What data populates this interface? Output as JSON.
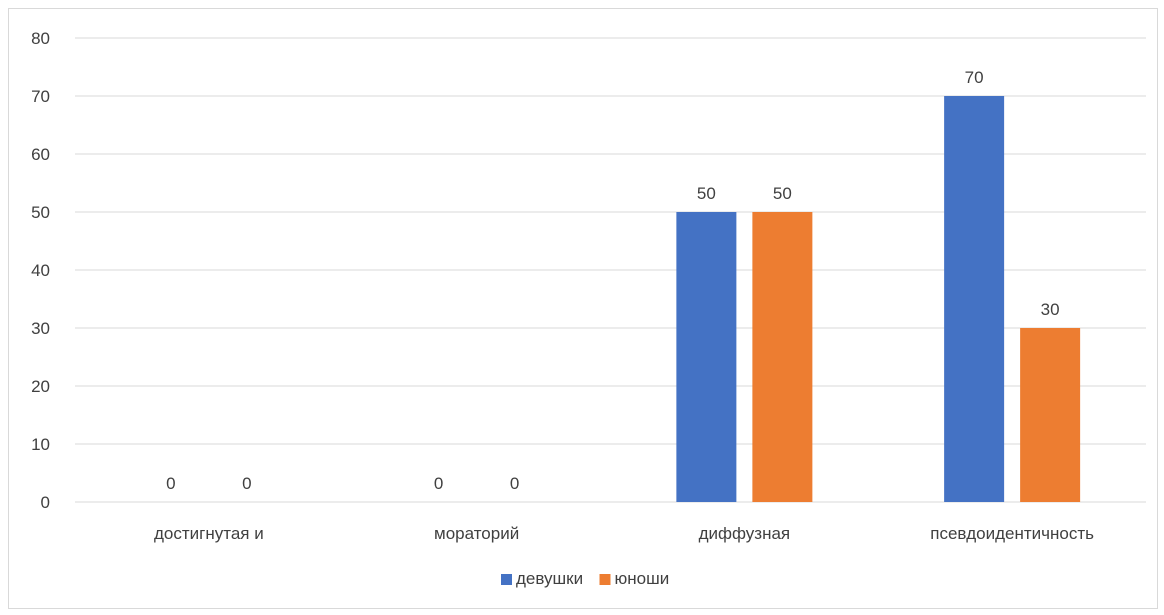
{
  "chart_data": {
    "type": "bar",
    "categories": [
      "достигнутая и",
      "мораторий",
      "диффузная",
      "псевдоидентичность"
    ],
    "series": [
      {
        "name": "девушки",
        "values": [
          0,
          0,
          50,
          70
        ],
        "color": "#4472C4"
      },
      {
        "name": "юноши",
        "values": [
          0,
          0,
          50,
          30
        ],
        "color": "#ED7D31"
      }
    ],
    "ylim": [
      0,
      80
    ],
    "yticks": [
      "0",
      "10",
      "20",
      "30",
      "40",
      "50",
      "60",
      "70",
      "80"
    ],
    "ytick_values": [
      0,
      10,
      20,
      30,
      40,
      50,
      60,
      70,
      80
    ],
    "grid": true,
    "legend_position": "bottom",
    "gridline_color": "#d9d9d9",
    "text_color": "#404040"
  }
}
